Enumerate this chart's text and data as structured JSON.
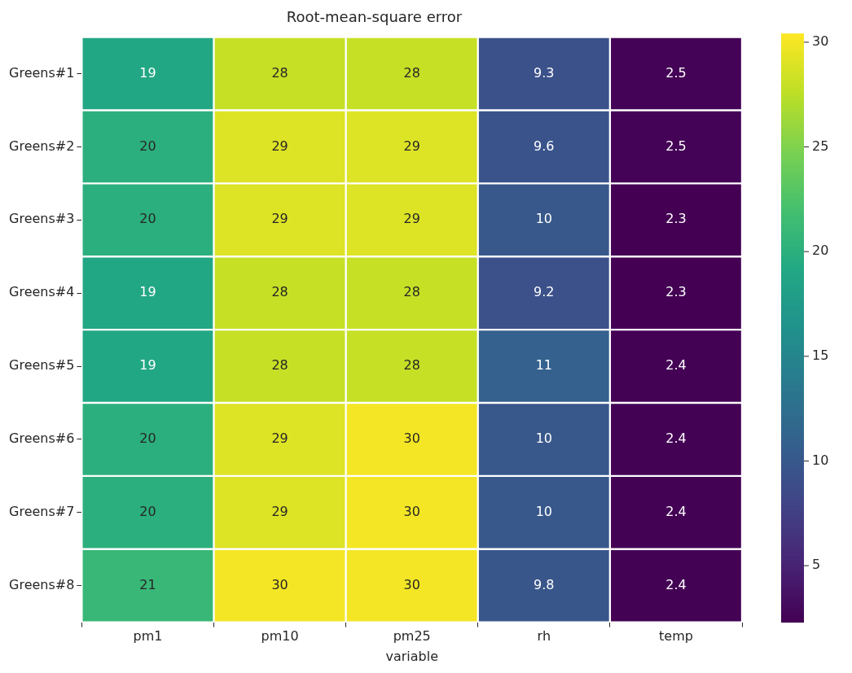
{
  "chart_data": {
    "type": "heatmap",
    "title": "Root-mean-square error",
    "xlabel": "variable",
    "categories": [
      "pm1",
      "pm10",
      "pm25",
      "rh",
      "temp"
    ],
    "y_categories": [
      "Greens#1",
      "Greens#2",
      "Greens#3",
      "Greens#4",
      "Greens#5",
      "Greens#6",
      "Greens#7",
      "Greens#8"
    ],
    "cells": [
      [
        19,
        28,
        28,
        9.3,
        2.5
      ],
      [
        20,
        29,
        29,
        9.6,
        2.5
      ],
      [
        20,
        29,
        29,
        10,
        2.3
      ],
      [
        19,
        28,
        28,
        9.2,
        2.3
      ],
      [
        19,
        28,
        28,
        11,
        2.4
      ],
      [
        20,
        29,
        30,
        10,
        2.4
      ],
      [
        20,
        29,
        30,
        10,
        2.4
      ],
      [
        21,
        30,
        30,
        9.8,
        2.4
      ]
    ],
    "clim": [
      2.3,
      30.4
    ],
    "cticks": [
      5,
      10,
      15,
      20,
      25,
      30
    ],
    "data_labels": true
  }
}
